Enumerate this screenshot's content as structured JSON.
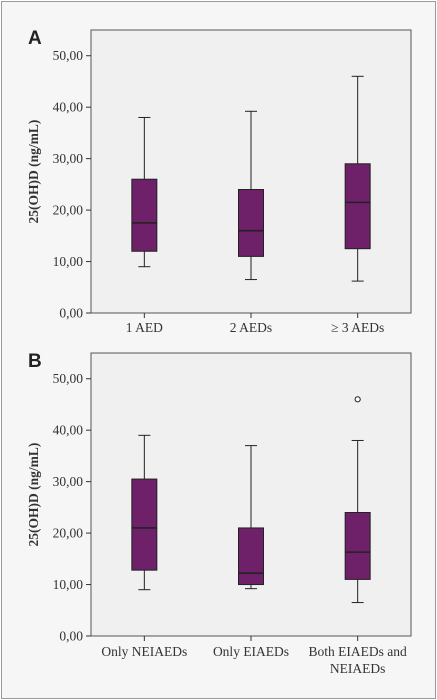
{
  "chart_data": [
    {
      "panel": "A",
      "type": "boxplot",
      "ylabel": "25(OH)D (ng/mL)",
      "ylim": [
        0,
        55
      ],
      "yticks": [
        "0,00",
        "10,00",
        "20,00",
        "30,00",
        "40,00",
        "50,00"
      ],
      "categories": [
        "1 AED",
        "2 AEDs",
        "≥ 3 AEDs"
      ],
      "boxes": [
        {
          "min": 9.0,
          "q1": 12.0,
          "median": 17.5,
          "q3": 26.0,
          "max": 38.0,
          "outliers": []
        },
        {
          "min": 6.5,
          "q1": 11.0,
          "median": 16.0,
          "q3": 24.0,
          "max": 39.2,
          "outliers": []
        },
        {
          "min": 6.2,
          "q1": 12.5,
          "median": 21.5,
          "q3": 29.0,
          "max": 46.0,
          "outliers": []
        }
      ]
    },
    {
      "panel": "B",
      "type": "boxplot",
      "ylabel": "25(OH)D (ng/mL)",
      "ylim": [
        0,
        55
      ],
      "yticks": [
        "0,00",
        "10,00",
        "20,00",
        "30,00",
        "40,00",
        "50,00"
      ],
      "categories": [
        "Only NEIAEDs",
        "Only EIAEDs",
        "Both EIAEDs and NEIAEDs"
      ],
      "boxes": [
        {
          "min": 9.0,
          "q1": 12.8,
          "median": 21.0,
          "q3": 30.5,
          "max": 39.0,
          "outliers": []
        },
        {
          "min": 9.2,
          "q1": 10.0,
          "median": 12.2,
          "q3": 21.0,
          "max": 37.0,
          "outliers": []
        },
        {
          "min": 6.5,
          "q1": 11.0,
          "median": 16.3,
          "q3": 24.0,
          "max": 38.0,
          "outliers": [
            46.0
          ]
        }
      ]
    }
  ],
  "colors": {
    "box_fill": "#6e2068",
    "plot_bg": "#f0f0f0",
    "line": "#222222"
  }
}
